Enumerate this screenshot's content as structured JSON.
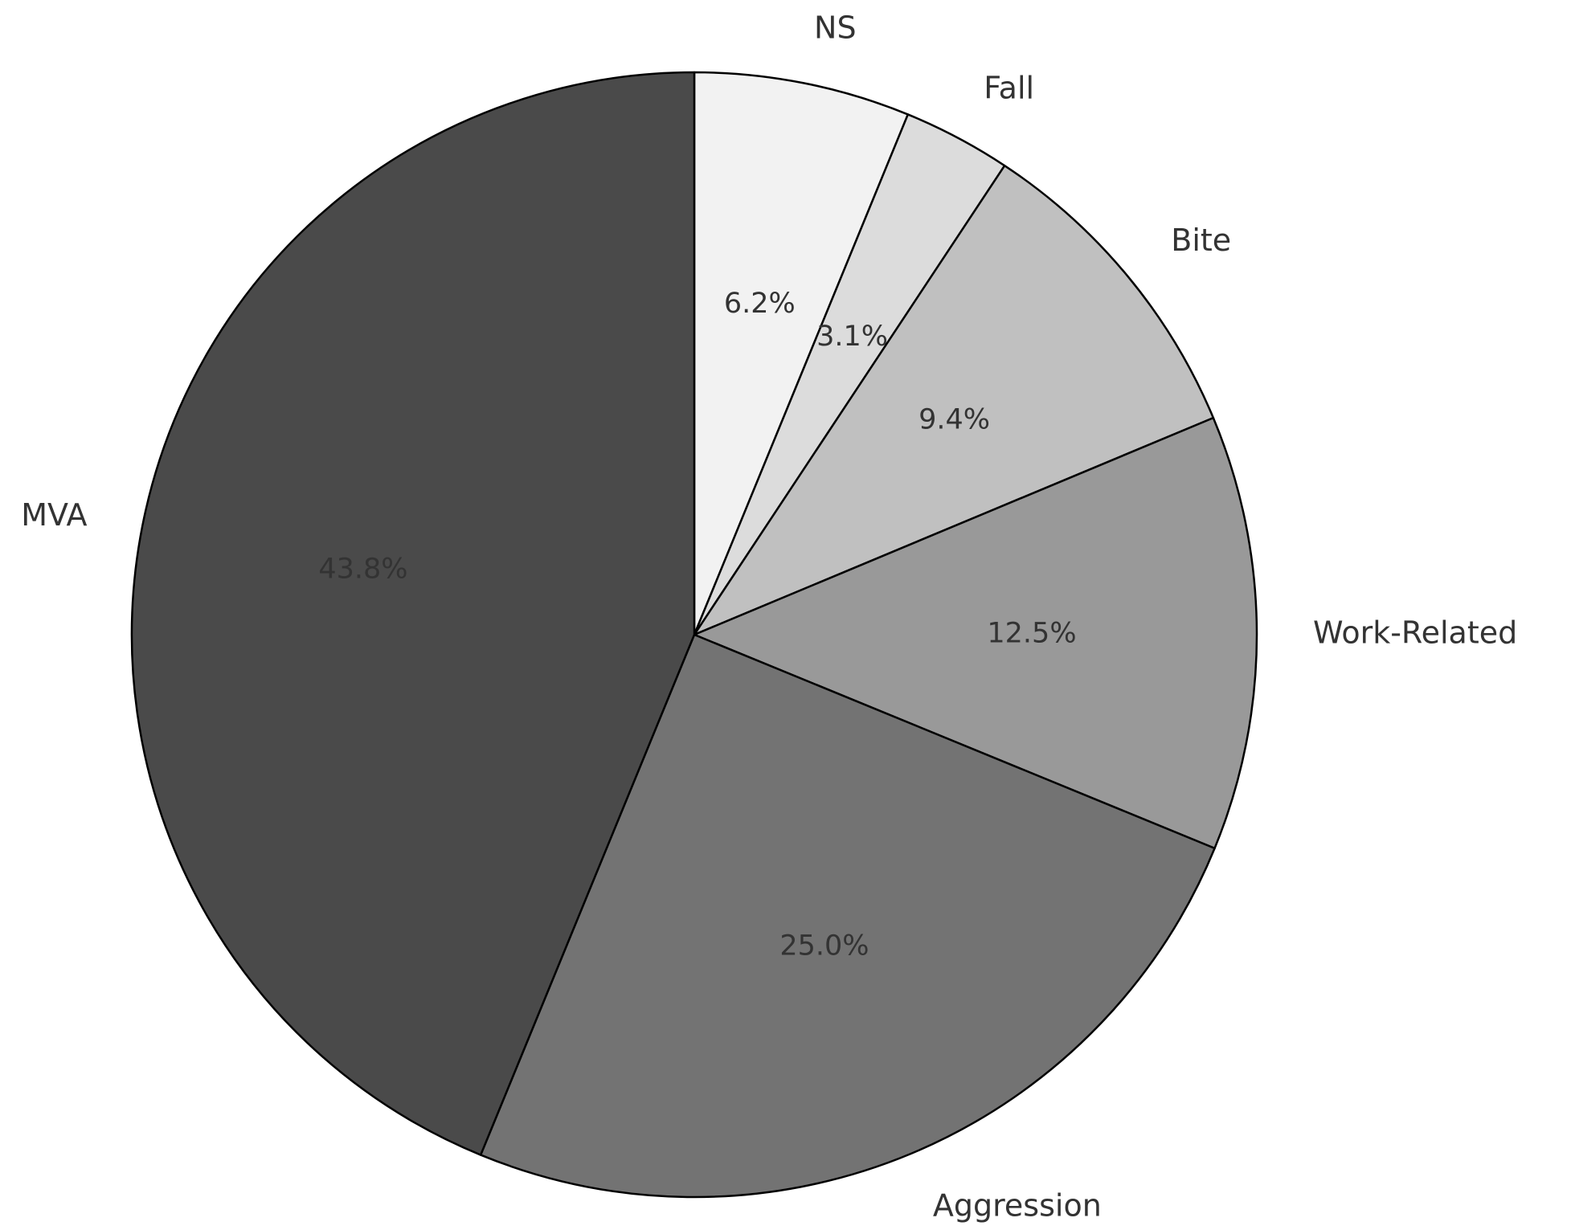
{
  "chart_data": {
    "type": "pie",
    "categories": [
      "NS",
      "Fall",
      "Bite",
      "Work-Related",
      "Aggression",
      "MVA"
    ],
    "values": [
      6.2,
      3.1,
      9.4,
      12.5,
      25.0,
      43.8
    ],
    "value_labels": [
      "6.2%",
      "3.1%",
      "9.4%",
      "12.5%",
      "25.0%",
      "43.8%"
    ],
    "colors": [
      "#f2f2f2",
      "#dcdcdc",
      "#c0c0c0",
      "#999999",
      "#737373",
      "#4a4a4a"
    ]
  }
}
